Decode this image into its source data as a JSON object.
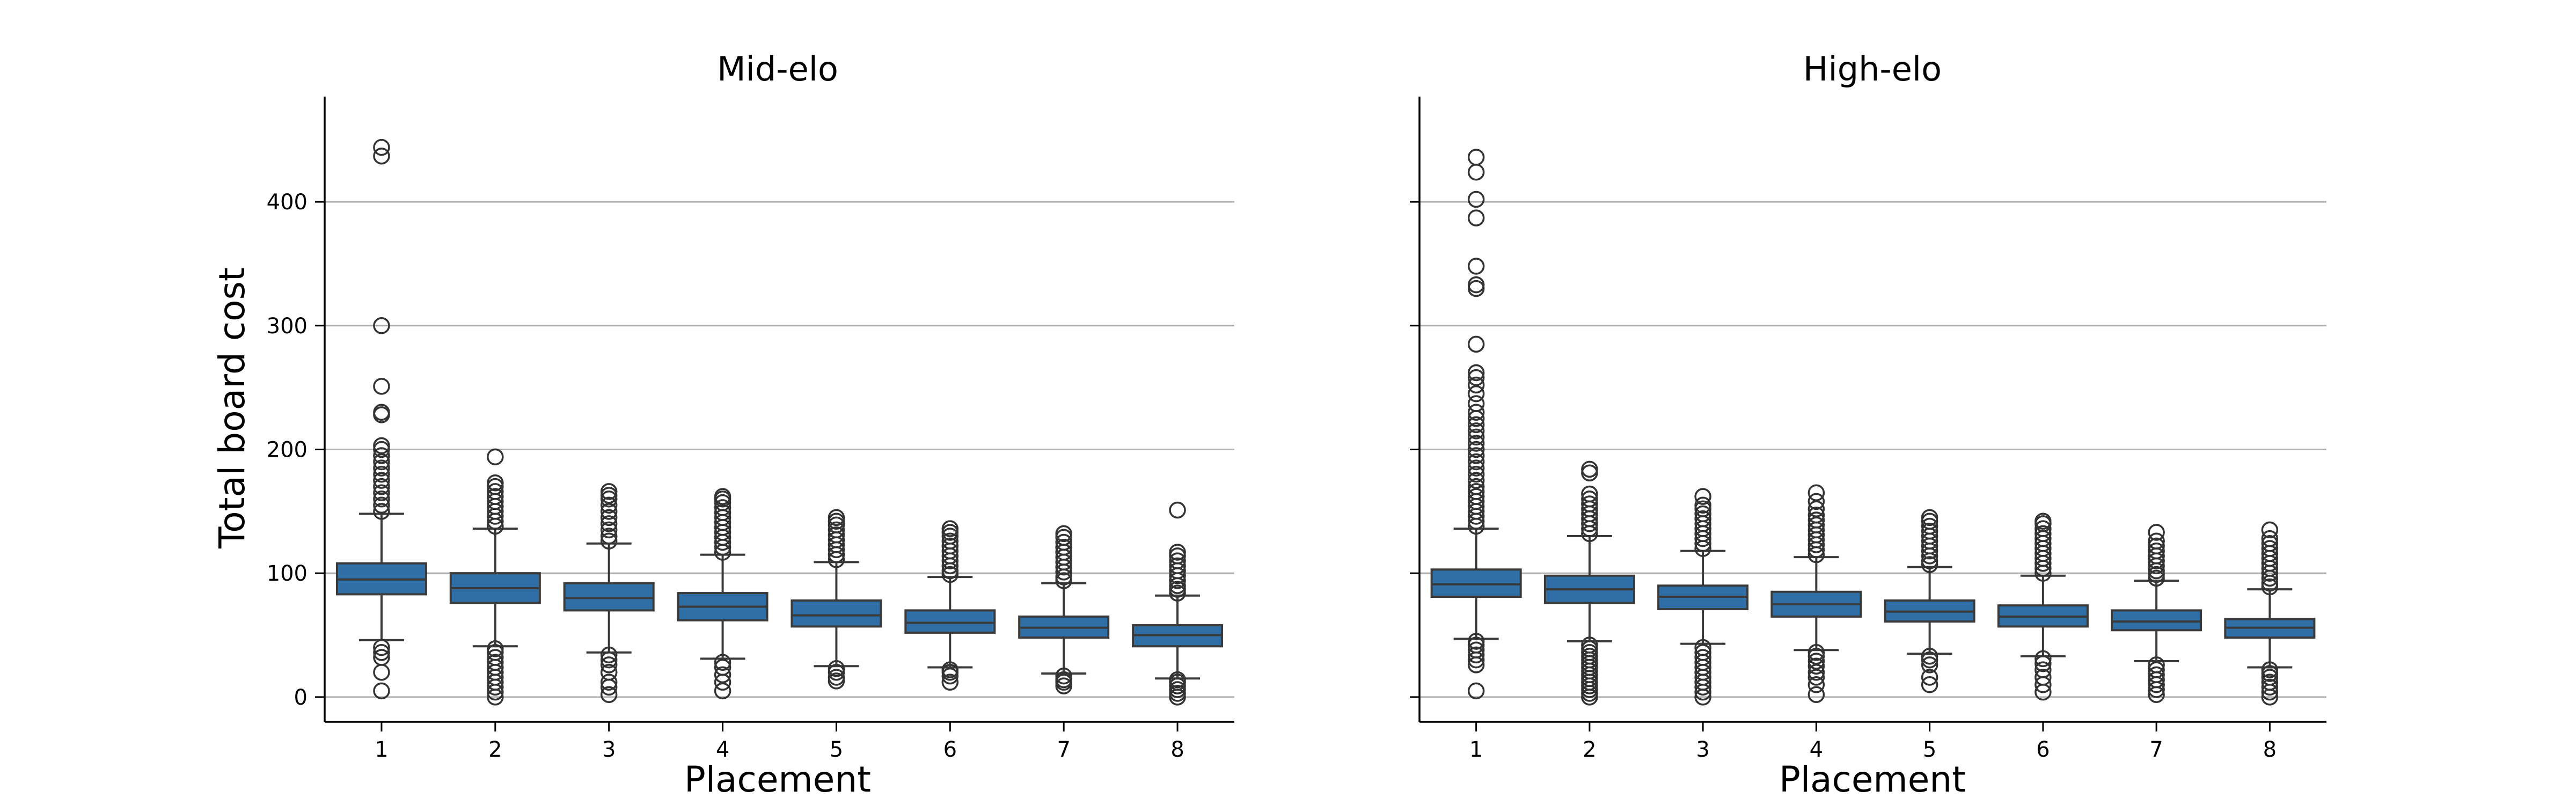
{
  "figure": {
    "ylabel": "Total board cost",
    "xlabel": "Placement",
    "yticks": [
      0,
      100,
      200,
      300,
      400
    ],
    "box_color": "#2f6fa6",
    "box_edge_color": "#3a3a3a",
    "grid_color": "#b0b0b0"
  },
  "chart_data": [
    {
      "type": "box",
      "title": "Mid-elo",
      "xlabel": "Placement",
      "ylabel": "Total board cost",
      "ylim": [
        -20,
        485
      ],
      "grid": "horizontal",
      "categories": [
        "1",
        "2",
        "3",
        "4",
        "5",
        "6",
        "7",
        "8"
      ],
      "boxes": [
        {
          "whislo": 46,
          "q1": 83,
          "med": 95,
          "q3": 108,
          "whishi": 148,
          "fliers_low": [
            5,
            20,
            32,
            36,
            40
          ],
          "fliers_high": [
            150,
            155,
            160,
            165,
            170,
            175,
            180,
            185,
            190,
            195,
            200,
            203,
            228,
            230,
            251,
            300,
            437,
            444
          ]
        },
        {
          "whislo": 41,
          "q1": 76,
          "med": 88,
          "q3": 100,
          "whishi": 136,
          "fliers_low": [
            0,
            4,
            8,
            12,
            16,
            20,
            24,
            28,
            32,
            36,
            39
          ],
          "fliers_high": [
            138,
            142,
            146,
            150,
            154,
            158,
            162,
            166,
            170,
            173,
            194
          ]
        },
        {
          "whislo": 36,
          "q1": 70,
          "med": 80,
          "q3": 92,
          "whishi": 124,
          "fliers_low": [
            2,
            8,
            12,
            20,
            26,
            30,
            34
          ],
          "fliers_high": [
            126,
            130,
            135,
            140,
            145,
            150,
            155,
            160,
            163,
            166
          ]
        },
        {
          "whislo": 31,
          "q1": 62,
          "med": 73,
          "q3": 84,
          "whishi": 115,
          "fliers_low": [
            5,
            12,
            18,
            24,
            28
          ],
          "fliers_high": [
            117,
            121,
            125,
            129,
            133,
            137,
            141,
            145,
            149,
            153,
            157,
            160,
            162
          ]
        },
        {
          "whislo": 25,
          "q1": 57,
          "med": 66,
          "q3": 78,
          "whishi": 109,
          "fliers_low": [
            13,
            16,
            20,
            23
          ],
          "fliers_high": [
            111,
            115,
            119,
            123,
            127,
            131,
            135,
            139,
            142,
            145
          ]
        },
        {
          "whislo": 24,
          "q1": 52,
          "med": 60,
          "q3": 70,
          "whishi": 97,
          "fliers_low": [
            12,
            17,
            20,
            22
          ],
          "fliers_high": [
            99,
            102,
            106,
            110,
            114,
            118,
            122,
            126,
            130,
            133,
            136
          ]
        },
        {
          "whislo": 19,
          "q1": 48,
          "med": 56,
          "q3": 65,
          "whishi": 92,
          "fliers_low": [
            9,
            12,
            14,
            17
          ],
          "fliers_high": [
            94,
            97,
            101,
            105,
            109,
            113,
            117,
            121,
            125,
            129,
            132
          ]
        },
        {
          "whislo": 15,
          "q1": 41,
          "med": 50,
          "q3": 58,
          "whishi": 82,
          "fliers_low": [
            0,
            3,
            6,
            9,
            12,
            14
          ],
          "fliers_high": [
            84,
            87,
            90,
            94,
            98,
            102,
            106,
            110,
            114,
            117,
            151
          ]
        }
      ]
    },
    {
      "type": "box",
      "title": "High-elo",
      "xlabel": "Placement",
      "ylabel": "Total board cost",
      "ylim": [
        -20,
        485
      ],
      "grid": "horizontal",
      "categories": [
        "1",
        "2",
        "3",
        "4",
        "5",
        "6",
        "7",
        "8"
      ],
      "boxes": [
        {
          "whislo": 47,
          "q1": 81,
          "med": 91,
          "q3": 103,
          "whishi": 136,
          "fliers_low": [
            5,
            26,
            30,
            34,
            38,
            42,
            45
          ],
          "fliers_high": [
            138,
            142,
            146,
            150,
            154,
            158,
            162,
            166,
            170,
            175,
            180,
            185,
            190,
            195,
            200,
            205,
            210,
            215,
            220,
            225,
            230,
            237,
            245,
            252,
            258,
            262,
            285,
            330,
            333,
            348,
            387,
            402,
            424,
            436
          ]
        },
        {
          "whislo": 45,
          "q1": 76,
          "med": 87,
          "q3": 98,
          "whishi": 130,
          "fliers_low": [
            0,
            3,
            6,
            9,
            12,
            15,
            18,
            21,
            24,
            27,
            30,
            33,
            36,
            39,
            42
          ],
          "fliers_high": [
            132,
            136,
            140,
            144,
            148,
            152,
            156,
            160,
            164,
            181,
            184
          ]
        },
        {
          "whislo": 43,
          "q1": 71,
          "med": 81,
          "q3": 90,
          "whishi": 118,
          "fliers_low": [
            0,
            4,
            8,
            12,
            16,
            20,
            24,
            28,
            32,
            36,
            40
          ],
          "fliers_high": [
            120,
            124,
            128,
            132,
            136,
            140,
            144,
            148,
            152,
            155,
            162
          ]
        },
        {
          "whislo": 38,
          "q1": 65,
          "med": 75,
          "q3": 85,
          "whishi": 113,
          "fliers_low": [
            2,
            10,
            16,
            20,
            25,
            29,
            33,
            36
          ],
          "fliers_high": [
            115,
            119,
            123,
            127,
            131,
            135,
            139,
            143,
            147,
            152,
            158,
            165
          ]
        },
        {
          "whislo": 35,
          "q1": 61,
          "med": 69,
          "q3": 78,
          "whishi": 105,
          "fliers_low": [
            10,
            16,
            26,
            30,
            33
          ],
          "fliers_high": [
            107,
            110,
            114,
            118,
            122,
            126,
            130,
            134,
            138,
            142,
            145
          ]
        },
        {
          "whislo": 33,
          "q1": 57,
          "med": 65,
          "q3": 74,
          "whishi": 98,
          "fliers_low": [
            4,
            10,
            16,
            22,
            27,
            31
          ],
          "fliers_high": [
            100,
            104,
            108,
            112,
            116,
            120,
            124,
            128,
            132,
            136,
            140,
            142
          ]
        },
        {
          "whislo": 29,
          "q1": 54,
          "med": 61,
          "q3": 70,
          "whishi": 94,
          "fliers_low": [
            2,
            6,
            10,
            14,
            18,
            22,
            26
          ],
          "fliers_high": [
            96,
            99,
            102,
            106,
            110,
            114,
            118,
            122,
            126,
            133
          ]
        },
        {
          "whislo": 24,
          "q1": 48,
          "med": 56,
          "q3": 63,
          "whishi": 87,
          "fliers_low": [
            0,
            4,
            8,
            12,
            16,
            19,
            22
          ],
          "fliers_high": [
            89,
            92,
            96,
            100,
            104,
            108,
            112,
            116,
            120,
            124,
            128,
            135
          ]
        }
      ]
    }
  ]
}
